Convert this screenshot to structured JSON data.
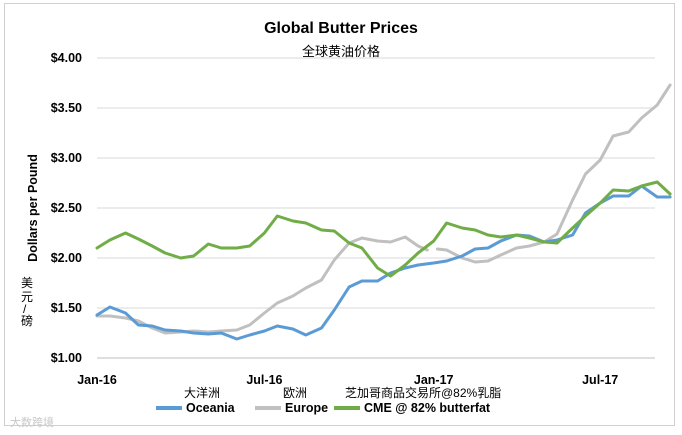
{
  "title_en": "Global Butter Prices",
  "title_zh": "全球黄油价格",
  "ylabel_en": "Dollars per Pound",
  "ylabel_zh": [
    "美",
    "元",
    "/",
    "磅"
  ],
  "legend_zh": [
    "大洋洲",
    "欧洲",
    "芝加哥商品交易所@82%乳脂"
  ],
  "watermark": "大数跨境",
  "colors": {
    "Oceania": "#5b9bd5",
    "Europe": "#c0c0c0",
    "CME": "#70ad47"
  },
  "chart_data": {
    "type": "line",
    "xlabel": "",
    "ylabel": "Dollars per Pound",
    "ylim": [
      1.0,
      4.0
    ],
    "yticks": [
      "$1.00",
      "$1.50",
      "$2.00",
      "$2.50",
      "$3.00",
      "$3.50",
      "$4.00"
    ],
    "xlim": [
      "2016-01",
      "2017-10"
    ],
    "xticks": [
      "Jan-16",
      "Jul-16",
      "Jan-17",
      "Jul-17"
    ],
    "grid": "horizontal",
    "legend_position": "bottom",
    "series": [
      {
        "name": "Oceania",
        "points": [
          [
            "2016-01-01",
            1.43
          ],
          [
            "2016-01-15",
            1.51
          ],
          [
            "2016-02-01",
            1.45
          ],
          [
            "2016-02-15",
            1.33
          ],
          [
            "2016-03-01",
            1.32
          ],
          [
            "2016-03-15",
            1.28
          ],
          [
            "2016-04-01",
            1.27
          ],
          [
            "2016-04-15",
            1.25
          ],
          [
            "2016-05-01",
            1.24
          ],
          [
            "2016-05-15",
            1.25
          ],
          [
            "2016-06-01",
            1.19
          ],
          [
            "2016-06-15",
            1.23
          ],
          [
            "2016-07-01",
            1.27
          ],
          [
            "2016-07-15",
            1.32
          ],
          [
            "2016-08-01",
            1.29
          ],
          [
            "2016-08-15",
            1.23
          ],
          [
            "2016-09-01",
            1.3
          ],
          [
            "2016-09-15",
            1.48
          ],
          [
            "2016-10-01",
            1.71
          ],
          [
            "2016-10-15",
            1.77
          ],
          [
            "2016-11-01",
            1.77
          ],
          [
            "2016-11-15",
            1.85
          ],
          [
            "2016-12-01",
            1.9
          ],
          [
            "2016-12-15",
            1.93
          ],
          [
            "2017-01-01",
            1.95
          ],
          [
            "2017-01-15",
            1.97
          ],
          [
            "2017-02-01",
            2.02
          ],
          [
            "2017-02-15",
            2.09
          ],
          [
            "2017-03-01",
            2.1
          ],
          [
            "2017-03-15",
            2.17
          ],
          [
            "2017-04-01",
            2.23
          ],
          [
            "2017-04-15",
            2.22
          ],
          [
            "2017-05-01",
            2.16
          ],
          [
            "2017-05-15",
            2.18
          ],
          [
            "2017-06-01",
            2.23
          ],
          [
            "2017-06-15",
            2.45
          ],
          [
            "2017-07-01",
            2.55
          ],
          [
            "2017-07-15",
            2.62
          ],
          [
            "2017-08-01",
            2.62
          ],
          [
            "2017-08-15",
            2.72
          ],
          [
            "2017-09-01",
            2.61
          ],
          [
            "2017-09-15",
            2.61
          ]
        ]
      },
      {
        "name": "Europe",
        "points": [
          [
            "2016-01-01",
            1.42
          ],
          [
            "2016-01-15",
            1.42
          ],
          [
            "2016-02-01",
            1.4
          ],
          [
            "2016-02-15",
            1.37
          ],
          [
            "2016-03-01",
            1.3
          ],
          [
            "2016-03-15",
            1.25
          ],
          [
            "2016-04-01",
            1.26
          ],
          [
            "2016-04-15",
            1.27
          ],
          [
            "2016-05-01",
            1.26
          ],
          [
            "2016-05-15",
            1.27
          ],
          [
            "2016-06-01",
            1.28
          ],
          [
            "2016-06-15",
            1.33
          ],
          [
            "2016-07-01",
            1.45
          ],
          [
            "2016-07-15",
            1.55
          ],
          [
            "2016-08-01",
            1.62
          ],
          [
            "2016-08-15",
            1.7
          ],
          [
            "2016-09-01",
            1.78
          ],
          [
            "2016-09-15",
            1.98
          ],
          [
            "2016-10-01",
            2.15
          ],
          [
            "2016-10-15",
            2.2
          ],
          [
            "2016-11-01",
            2.17
          ],
          [
            "2016-11-15",
            2.16
          ],
          [
            "2016-12-01",
            2.21
          ],
          [
            "2016-12-15",
            2.12
          ],
          [
            "2016-12-25",
            2.08
          ],
          null,
          [
            "2017-01-05",
            2.09
          ],
          [
            "2017-01-15",
            2.08
          ],
          [
            "2017-02-01",
            2.0
          ],
          [
            "2017-02-15",
            1.96
          ],
          [
            "2017-03-01",
            1.97
          ],
          [
            "2017-03-15",
            2.03
          ],
          [
            "2017-04-01",
            2.1
          ],
          [
            "2017-04-15",
            2.12
          ],
          [
            "2017-05-01",
            2.16
          ],
          [
            "2017-05-15",
            2.24
          ],
          [
            "2017-06-01",
            2.58
          ],
          [
            "2017-06-15",
            2.84
          ],
          [
            "2017-07-01",
            2.98
          ],
          [
            "2017-07-15",
            3.22
          ],
          [
            "2017-08-01",
            3.26
          ],
          [
            "2017-08-15",
            3.4
          ],
          [
            "2017-09-01",
            3.53
          ],
          [
            "2017-09-15",
            3.73
          ]
        ]
      },
      {
        "name": "CME @ 82% butterfat",
        "points": [
          [
            "2016-01-01",
            2.1
          ],
          [
            "2016-01-15",
            2.18
          ],
          [
            "2016-02-01",
            2.25
          ],
          [
            "2016-02-15",
            2.19
          ],
          [
            "2016-03-01",
            2.12
          ],
          [
            "2016-03-15",
            2.05
          ],
          [
            "2016-04-01",
            2.0
          ],
          [
            "2016-04-15",
            2.02
          ],
          [
            "2016-05-01",
            2.14
          ],
          [
            "2016-05-15",
            2.1
          ],
          [
            "2016-06-01",
            2.1
          ],
          [
            "2016-06-15",
            2.12
          ],
          [
            "2016-07-01",
            2.25
          ],
          [
            "2016-07-15",
            2.42
          ],
          [
            "2016-08-01",
            2.37
          ],
          [
            "2016-08-15",
            2.35
          ],
          [
            "2016-09-01",
            2.28
          ],
          [
            "2016-09-15",
            2.27
          ],
          [
            "2016-10-01",
            2.15
          ],
          [
            "2016-10-15",
            2.1
          ],
          [
            "2016-11-01",
            1.9
          ],
          [
            "2016-11-15",
            1.82
          ],
          [
            "2016-12-01",
            1.93
          ],
          [
            "2016-12-15",
            2.05
          ],
          [
            "2017-01-01",
            2.17
          ],
          [
            "2017-01-15",
            2.35
          ],
          [
            "2017-02-01",
            2.3
          ],
          [
            "2017-02-15",
            2.28
          ],
          [
            "2017-03-01",
            2.23
          ],
          [
            "2017-03-15",
            2.21
          ],
          [
            "2017-04-01",
            2.23
          ],
          [
            "2017-04-15",
            2.2
          ],
          [
            "2017-05-01",
            2.16
          ],
          [
            "2017-05-15",
            2.15
          ],
          [
            "2017-06-01",
            2.3
          ],
          [
            "2017-06-15",
            2.42
          ],
          [
            "2017-07-01",
            2.55
          ],
          [
            "2017-07-15",
            2.68
          ],
          [
            "2017-08-01",
            2.67
          ],
          [
            "2017-08-15",
            2.72
          ],
          [
            "2017-09-01",
            2.76
          ],
          [
            "2017-09-15",
            2.64
          ]
        ]
      }
    ]
  }
}
